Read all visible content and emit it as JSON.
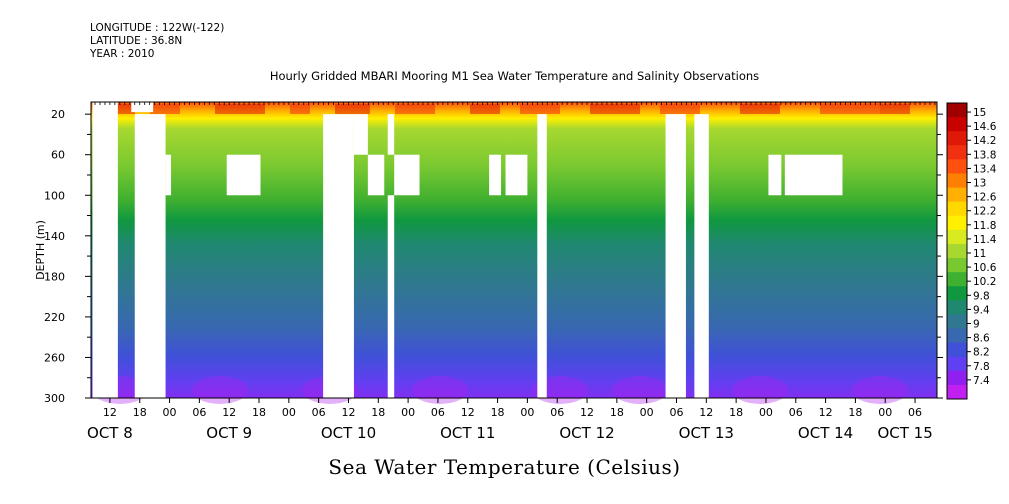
{
  "header": {
    "longitude": "LONGITUDE : 122W(-122)",
    "latitude": "LATITUDE : 36.8N",
    "year": "YEAR : 2010"
  },
  "chart_data": {
    "type": "heatmap",
    "title": "Hourly Gridded MBARI Mooring M1 Sea Water Temperature and Salinity Observations",
    "xlabel": "Sea Water Temperature (Celsius)",
    "ylabel": "DEPTH (m)",
    "y_ticks": [
      20,
      60,
      100,
      140,
      180,
      220,
      260,
      300
    ],
    "ylim": [
      300,
      8
    ],
    "x_hour_ticks": [
      {
        "day": 0,
        "h": 12,
        "label": "12"
      },
      {
        "day": 0,
        "h": 18,
        "label": "18"
      },
      {
        "day": 1,
        "h": 0,
        "label": "00"
      },
      {
        "day": 1,
        "h": 6,
        "label": "06"
      },
      {
        "day": 1,
        "h": 12,
        "label": "12"
      },
      {
        "day": 1,
        "h": 18,
        "label": "18"
      },
      {
        "day": 2,
        "h": 0,
        "label": "00"
      },
      {
        "day": 2,
        "h": 6,
        "label": "06"
      },
      {
        "day": 2,
        "h": 12,
        "label": "12"
      },
      {
        "day": 2,
        "h": 18,
        "label": "18"
      },
      {
        "day": 3,
        "h": 0,
        "label": "00"
      },
      {
        "day": 3,
        "h": 6,
        "label": "06"
      },
      {
        "day": 3,
        "h": 12,
        "label": "12"
      },
      {
        "day": 3,
        "h": 18,
        "label": "18"
      },
      {
        "day": 4,
        "h": 0,
        "label": "00"
      },
      {
        "day": 4,
        "h": 6,
        "label": "06"
      },
      {
        "day": 4,
        "h": 12,
        "label": "12"
      },
      {
        "day": 4,
        "h": 18,
        "label": "18"
      },
      {
        "day": 5,
        "h": 0,
        "label": "00"
      },
      {
        "day": 5,
        "h": 6,
        "label": "06"
      },
      {
        "day": 5,
        "h": 12,
        "label": "12"
      },
      {
        "day": 5,
        "h": 18,
        "label": "18"
      },
      {
        "day": 6,
        "h": 0,
        "label": "00"
      },
      {
        "day": 6,
        "h": 6,
        "label": "06"
      },
      {
        "day": 6,
        "h": 12,
        "label": "12"
      },
      {
        "day": 6,
        "h": 18,
        "label": "18"
      },
      {
        "day": 7,
        "h": 0,
        "label": "00"
      },
      {
        "day": 7,
        "h": 6,
        "label": "06"
      }
    ],
    "x_day_labels": [
      {
        "day": 0,
        "h": 12,
        "label": "OCT  8"
      },
      {
        "day": 1,
        "h": 12,
        "label": "OCT  9"
      },
      {
        "day": 2,
        "h": 12,
        "label": "OCT 10"
      },
      {
        "day": 3,
        "h": 12,
        "label": "OCT 11"
      },
      {
        "day": 4,
        "h": 12,
        "label": "OCT 12"
      },
      {
        "day": 5,
        "h": 12,
        "label": "OCT 13"
      },
      {
        "day": 6,
        "h": 12,
        "label": "OCT 14"
      },
      {
        "day": 7,
        "h": 4,
        "label": "OCT 15"
      }
    ],
    "colorbar": {
      "levels": [
        "15",
        "14.6",
        "14.2",
        "13.8",
        "13.4",
        "13",
        "12.6",
        "12.2",
        "11.8",
        "11.4",
        "11",
        "10.6",
        "10.2",
        "9.8",
        "9.4",
        "9",
        "8.6",
        "8.2",
        "7.8",
        "7.4"
      ],
      "colors": [
        "#a00000",
        "#c80000",
        "#e01808",
        "#f03010",
        "#ff5010",
        "#ff8000",
        "#ffb000",
        "#ffd800",
        "#fff000",
        "#d8ea20",
        "#a8d830",
        "#78c830",
        "#40b030",
        "#109840",
        "#208870",
        "#307890",
        "#3868b0",
        "#4050d8",
        "#6040f0",
        "#9020f0",
        "#c020f0"
      ]
    },
    "missing_blocks": [
      {
        "day": 0,
        "h0": 8.5,
        "h1": 13.6,
        "d0": 8,
        "d1": 300
      },
      {
        "day": 0,
        "h0": 16.3,
        "h1": 20.7,
        "d0": 8,
        "d1": 18
      },
      {
        "day": 0,
        "h0": 17.0,
        "h1": 23.2,
        "d0": 20,
        "d1": 300
      },
      {
        "day": 0,
        "h0": 23.2,
        "h1": 24.3,
        "d0": 60,
        "d1": 100
      },
      {
        "day": 1,
        "h0": 11.5,
        "h1": 18.3,
        "d0": 60,
        "d1": 100
      },
      {
        "day": 2,
        "h0": 6.9,
        "h1": 13.1,
        "d0": 20,
        "d1": 300
      },
      {
        "day": 2,
        "h0": 13.1,
        "h1": 15.9,
        "d0": 20,
        "d1": 60
      },
      {
        "day": 2,
        "h0": 15.9,
        "h1": 19.2,
        "d0": 60,
        "d1": 100
      },
      {
        "day": 2,
        "h0": 19.9,
        "h1": 21.2,
        "d0": 20,
        "d1": 60
      },
      {
        "day": 2,
        "h0": 19.9,
        "h1": 21.2,
        "d0": 100,
        "d1": 300
      },
      {
        "day": 2,
        "h0": 21.2,
        "h1": 26.3,
        "d0": 60,
        "d1": 100
      },
      {
        "day": 3,
        "h0": 16.3,
        "h1": 18.7,
        "d0": 60,
        "d1": 100
      },
      {
        "day": 3,
        "h0": 19.6,
        "h1": 24.0,
        "d0": 60,
        "d1": 100
      },
      {
        "day": 4,
        "h0": 2.0,
        "h1": 3.9,
        "d0": 20,
        "d1": 300
      },
      {
        "day": 5,
        "h0": 3.8,
        "h1": 7.9,
        "d0": 20,
        "d1": 300
      },
      {
        "day": 5,
        "h0": 9.6,
        "h1": 12.5,
        "d0": 20,
        "d1": 300
      },
      {
        "day": 6,
        "h0": 0.5,
        "h1": 3.1,
        "d0": 60,
        "d1": 100
      },
      {
        "day": 6,
        "h0": 3.8,
        "h1": 15.4,
        "d0": 60,
        "d1": 100
      }
    ]
  }
}
